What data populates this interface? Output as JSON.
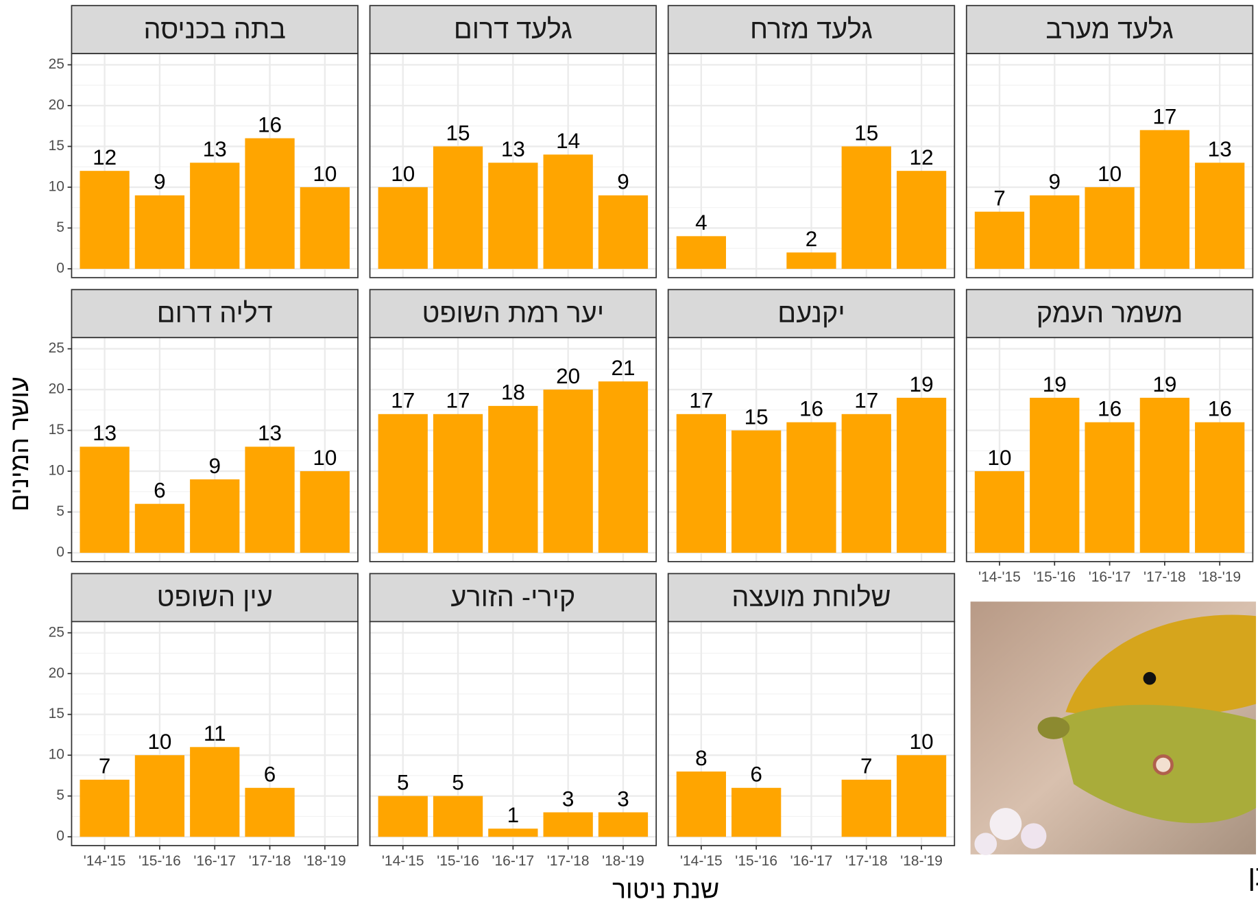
{
  "chart_data": {
    "type": "bar",
    "ylabel": "עושר המינים",
    "xlabel": "שנת ניטור",
    "caption": "צהבוני התלתן",
    "color": "#ffa500",
    "grid": true,
    "categories": [
      "'14-'15",
      "'15-'16",
      "'16-'17",
      "'17-'18",
      "'18-'19"
    ],
    "ylim": [
      0,
      25
    ],
    "yticks": [
      0,
      5,
      10,
      15,
      20,
      25
    ],
    "facets": [
      {
        "title": "בתה בכניסה",
        "values": [
          12,
          9,
          13,
          16,
          10
        ]
      },
      {
        "title": "גלעד דרום",
        "values": [
          10,
          15,
          13,
          14,
          9
        ]
      },
      {
        "title": "גלעד מזרח",
        "values": [
          4,
          null,
          2,
          15,
          12
        ]
      },
      {
        "title": "גלעד מערב",
        "values": [
          7,
          9,
          10,
          17,
          13
        ]
      },
      {
        "title": "דליה דרום",
        "values": [
          13,
          6,
          9,
          13,
          10
        ]
      },
      {
        "title": "יער רמת השופט",
        "values": [
          17,
          17,
          18,
          20,
          21
        ]
      },
      {
        "title": "יקנעם",
        "values": [
          17,
          15,
          16,
          17,
          19
        ]
      },
      {
        "title": "משמר העמק",
        "values": [
          10,
          19,
          16,
          19,
          16
        ]
      },
      {
        "title": "עין השופט",
        "values": [
          7,
          10,
          11,
          6,
          null
        ]
      },
      {
        "title": "קירי- הזורע",
        "values": [
          5,
          5,
          1,
          3,
          3
        ]
      },
      {
        "title": "שלוחת מועצה",
        "values": [
          8,
          6,
          null,
          7,
          10
        ]
      }
    ]
  }
}
